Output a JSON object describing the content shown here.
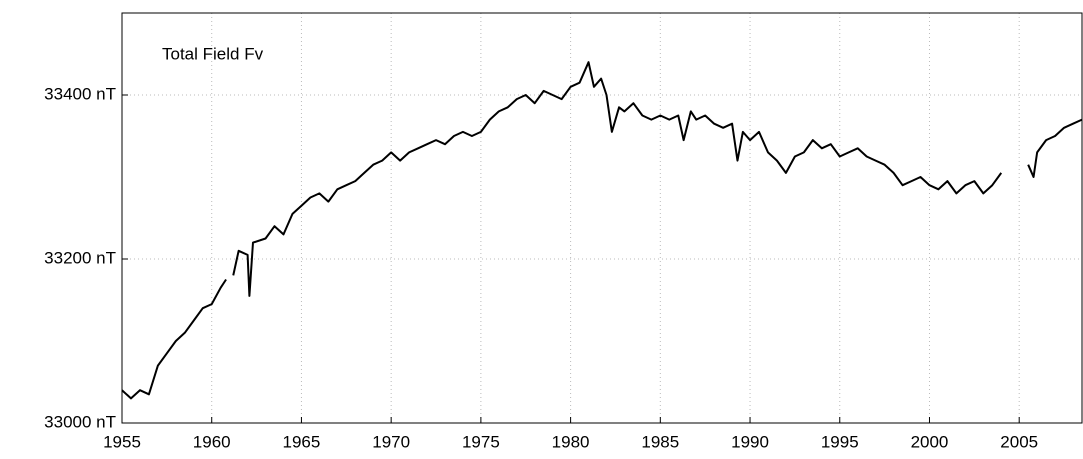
{
  "chart_data": {
    "type": "line",
    "annotation": "Total Field Fv",
    "x": [
      1955,
      1955.5,
      1956,
      1956.5,
      1957,
      1957.5,
      1958,
      1958.5,
      1959,
      1959.5,
      1960,
      1960.5,
      1960.8,
      1961,
      1961.2,
      1961.5,
      1962,
      1962.1,
      1962.3,
      1963,
      1963.5,
      1964,
      1964.5,
      1965,
      1965.5,
      1966,
      1966.5,
      1967,
      1967.5,
      1968,
      1968.5,
      1969,
      1969.5,
      1970,
      1970.5,
      1971,
      1971.5,
      1972,
      1972.5,
      1973,
      1973.5,
      1974,
      1974.5,
      1975,
      1975.5,
      1976,
      1976.5,
      1977,
      1977.5,
      1978,
      1978.5,
      1979,
      1979.5,
      1980,
      1980.5,
      1981,
      1981.3,
      1981.7,
      1982,
      1982.3,
      1982.7,
      1983,
      1983.5,
      1984,
      1984.5,
      1985,
      1985.5,
      1986,
      1986.3,
      1986.7,
      1987,
      1987.5,
      1988,
      1988.5,
      1989,
      1989.3,
      1989.6,
      1990,
      1990.5,
      1991,
      1991.5,
      1992,
      1992.5,
      1993,
      1993.5,
      1994,
      1994.5,
      1995,
      1995.5,
      1996,
      1996.5,
      1997,
      1997.5,
      1998,
      1998.5,
      1999,
      1999.5,
      2000,
      2000.5,
      2001,
      2001.5,
      2002,
      2002.5,
      2003,
      2003.5,
      2004,
      2004.8,
      2005.5,
      2005.8,
      2006,
      2006.5,
      2007,
      2007.5,
      2008,
      2008.5
    ],
    "series": [
      {
        "name": "Fv",
        "color": "#000000",
        "values": [
          33040,
          33030,
          33040,
          33035,
          33070,
          33085,
          33100,
          33110,
          33125,
          33140,
          33145,
          33165,
          33175,
          null,
          33180,
          33210,
          33205,
          33155,
          33220,
          33225,
          33240,
          33230,
          33255,
          33265,
          33275,
          33280,
          33270,
          33285,
          33290,
          33295,
          33305,
          33315,
          33320,
          33330,
          33320,
          33330,
          33335,
          33340,
          33345,
          33340,
          33350,
          33355,
          33350,
          33355,
          33370,
          33380,
          33385,
          33395,
          33400,
          33390,
          33405,
          33400,
          33395,
          33410,
          33415,
          33440,
          33410,
          33420,
          33400,
          33355,
          33385,
          33380,
          33390,
          33375,
          33370,
          33375,
          33370,
          33375,
          33345,
          33380,
          33370,
          33375,
          33365,
          33360,
          33365,
          33320,
          33355,
          33345,
          33355,
          33330,
          33320,
          33305,
          33325,
          33330,
          33345,
          33335,
          33340,
          33325,
          33330,
          33335,
          33325,
          33320,
          33315,
          33305,
          33290,
          33295,
          33300,
          33290,
          33285,
          33295,
          33280,
          33290,
          33295,
          33280,
          33290,
          33305,
          null,
          33315,
          33300,
          33330,
          33345,
          33350,
          33360,
          33365,
          33370
        ]
      }
    ],
    "xlim": [
      1955,
      2008.5
    ],
    "xticks": [
      1955,
      1960,
      1965,
      1970,
      1975,
      1980,
      1985,
      1990,
      1995,
      2000,
      2005
    ],
    "ylim": [
      33000,
      33500
    ],
    "yticks": [
      {
        "value": 33000,
        "label": "33000 nT"
      },
      {
        "value": 33200,
        "label": "33200 nT"
      },
      {
        "value": 33400,
        "label": "33400 nT"
      }
    ],
    "grid": true
  }
}
